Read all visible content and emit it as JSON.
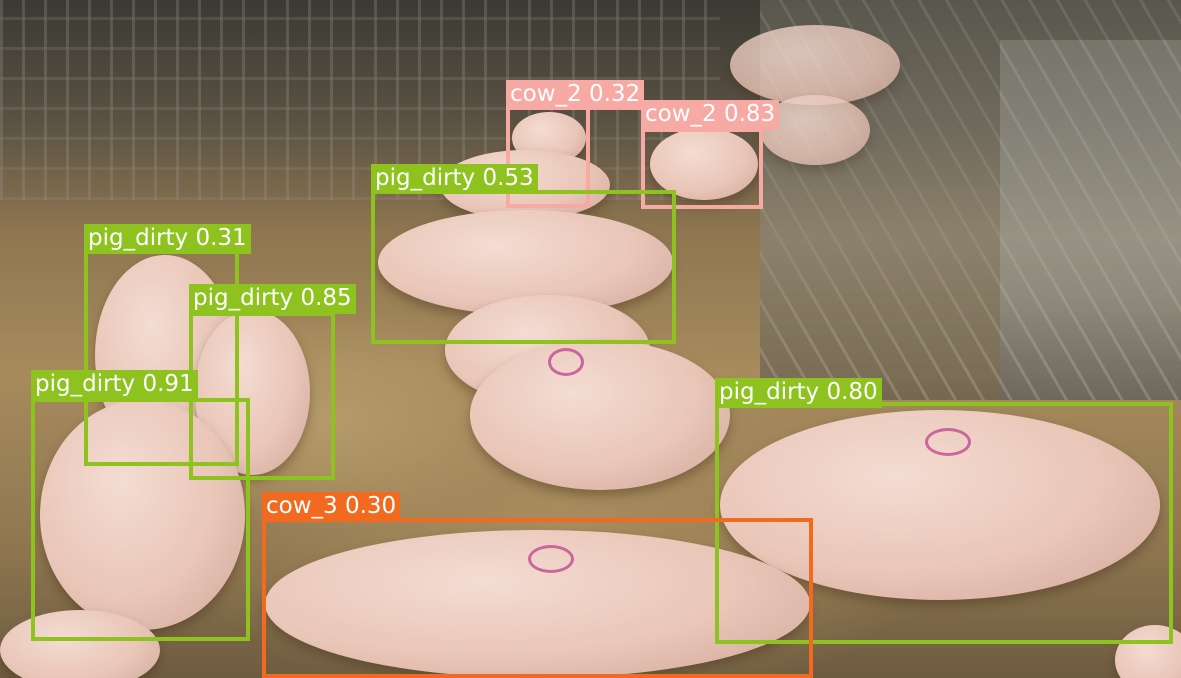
{
  "palette": {
    "pig_dirty": "#8dc21f",
    "cow_2": "#f7a9a3",
    "cow_3": "#f26a1f",
    "label_text": "#ffffff"
  },
  "detections": [
    {
      "name": "cow-2-detection-a",
      "label": "cow_2 0.32",
      "class": "cow_2"
    },
    {
      "name": "cow-2-detection-b",
      "label": "cow_2 0.83",
      "class": "cow_2"
    },
    {
      "name": "pig-dirty-detection-053",
      "label": "pig_dirty 0.53",
      "class": "pig_dirty"
    },
    {
      "name": "pig-dirty-detection-031",
      "label": "pig_dirty 0.31",
      "class": "pig_dirty"
    },
    {
      "name": "pig-dirty-detection-085",
      "label": "pig_dirty 0.85",
      "class": "pig_dirty"
    },
    {
      "name": "pig-dirty-detection-091",
      "label": "pig_dirty 0.91",
      "class": "pig_dirty"
    },
    {
      "name": "pig-dirty-detection-080",
      "label": "pig_dirty 0.80",
      "class": "pig_dirty"
    },
    {
      "name": "cow-3-detection",
      "label": "cow_3 0.30",
      "class": "cow_3"
    }
  ]
}
